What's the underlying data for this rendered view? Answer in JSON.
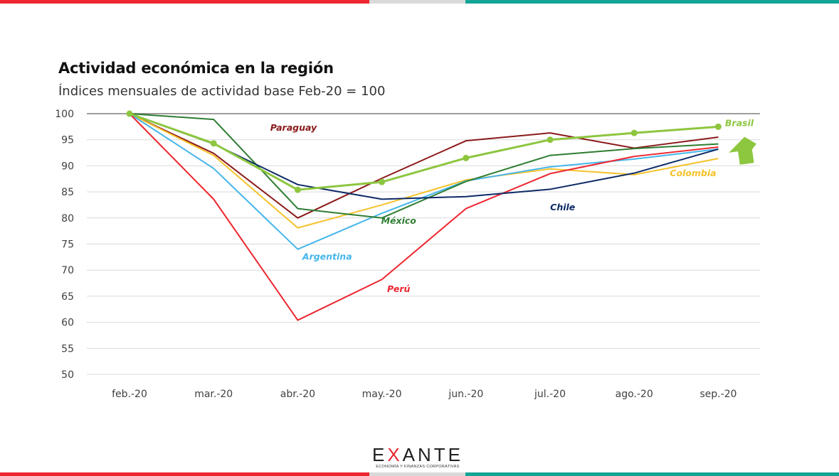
{
  "title": "Actividad económica en la región",
  "subtitle": "Índices mensuales de actividad base Feb-20 = 100",
  "colors": {
    "bar_red": "#ed2630",
    "bar_gray": "#d9d9d9",
    "bar_teal": "#13a595",
    "arrow": "#8dc63f"
  },
  "logo": {
    "text_before": "E",
    "text_x": "X",
    "text_after": "ANTE",
    "tagline": "ECONOMÍA Y FINANZAS CORPORATIVAS"
  },
  "chart_data": {
    "type": "line",
    "categories": [
      "feb.-20",
      "mar.-20",
      "abr.-20",
      "may.-20",
      "jun.-20",
      "jul.-20",
      "ago.-20",
      "sep.-20"
    ],
    "ylim": [
      50,
      100
    ],
    "yticks": [
      100,
      95,
      90,
      85,
      80,
      75,
      70,
      65,
      60,
      55,
      50
    ],
    "grid": true,
    "series": [
      {
        "name": "Paraguay",
        "color": "#8b1a1a",
        "values": [
          100,
          92.4,
          80.0,
          87.6,
          94.8,
          96.3,
          93.4,
          95.5
        ],
        "label_pos": [
          1.95,
          96.7
        ]
      },
      {
        "name": "Colombia",
        "color": "#f5c22a",
        "values": [
          100,
          92.0,
          78.1,
          82.5,
          87.3,
          89.4,
          88.3,
          91.4
        ],
        "label_pos": [
          6.7,
          88.0
        ]
      },
      {
        "name": "Argentina",
        "color": "#45b6ea",
        "values": [
          100,
          89.5,
          74.0,
          80.9,
          87.1,
          89.8,
          91.3,
          93.2
        ],
        "label_pos": [
          2.35,
          72.0
        ]
      },
      {
        "name": "México",
        "color": "#2e7d32",
        "values": [
          100,
          98.9,
          81.8,
          80.0,
          87.0,
          92.0,
          93.3,
          94.2
        ],
        "label_pos": [
          3.2,
          78.9
        ]
      },
      {
        "name": "Perú",
        "color": "#ed2630",
        "values": [
          100,
          83.6,
          60.4,
          68.2,
          81.8,
          88.5,
          91.8,
          93.6
        ],
        "label_pos": [
          3.2,
          65.8
        ]
      },
      {
        "name": "Chile",
        "color": "#0d2a66",
        "values": [
          100,
          94.2,
          86.4,
          83.6,
          84.1,
          85.5,
          88.6,
          93.2
        ],
        "label_pos": [
          5.15,
          81.5
        ]
      },
      {
        "name": "Brasil",
        "color": "#8dc63f",
        "values": [
          100,
          94.3,
          85.4,
          86.9,
          91.5,
          95.0,
          96.3,
          97.5
        ],
        "label_pos": [
          7.25,
          97.6
        ],
        "markers": true
      }
    ]
  }
}
